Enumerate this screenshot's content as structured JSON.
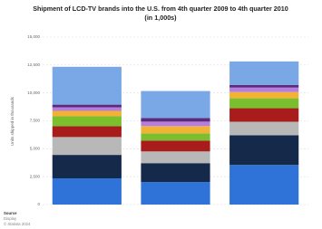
{
  "chart_data": {
    "type": "stacked-bar",
    "title": "Shipment of LCD-TV brands into the U.S. from 4th quarter 2009 to 4th quarter 2010 (in 1,000s)",
    "y_label": "Units shipped in thousands",
    "categories": [
      null,
      null,
      null
    ],
    "series": [
      {
        "color": "#2f73d8",
        "values": [
          2350,
          2020,
          3550
        ]
      },
      {
        "color": "#152a4a",
        "values": [
          2100,
          1690,
          2660
        ]
      },
      {
        "color": "#b8b8b8",
        "values": [
          1600,
          1050,
          1210
        ]
      },
      {
        "color": "#a91c1c",
        "values": [
          970,
          970,
          1210
        ]
      },
      {
        "color": "#7bbf2e",
        "values": [
          890,
          650,
          890
        ]
      },
      {
        "color": "#f2b233",
        "values": [
          480,
          650,
          560
        ]
      },
      {
        "color": "#b57de0",
        "values": [
          320,
          400,
          400
        ]
      },
      {
        "color": "#5b2a7a",
        "values": [
          240,
          320,
          240
        ]
      },
      {
        "color": "#7aa8e6",
        "values": [
          3390,
          2420,
          2100
        ]
      }
    ],
    "ylim": [
      0,
      15000
    ],
    "yticks": [
      0,
      {
        "value": 2500,
        "label": "2,500"
      },
      {
        "value": 5000,
        "label": "5,000"
      },
      {
        "value": 7500,
        "label": "7,500"
      },
      {
        "value": 10000,
        "label": "10,000"
      },
      {
        "value": 12500,
        "label": "12,500"
      },
      {
        "value": 15000,
        "label": "15,000"
      }
    ],
    "grid": true,
    "footer": [
      "Source",
      "Display",
      "© Statista 2024"
    ]
  }
}
